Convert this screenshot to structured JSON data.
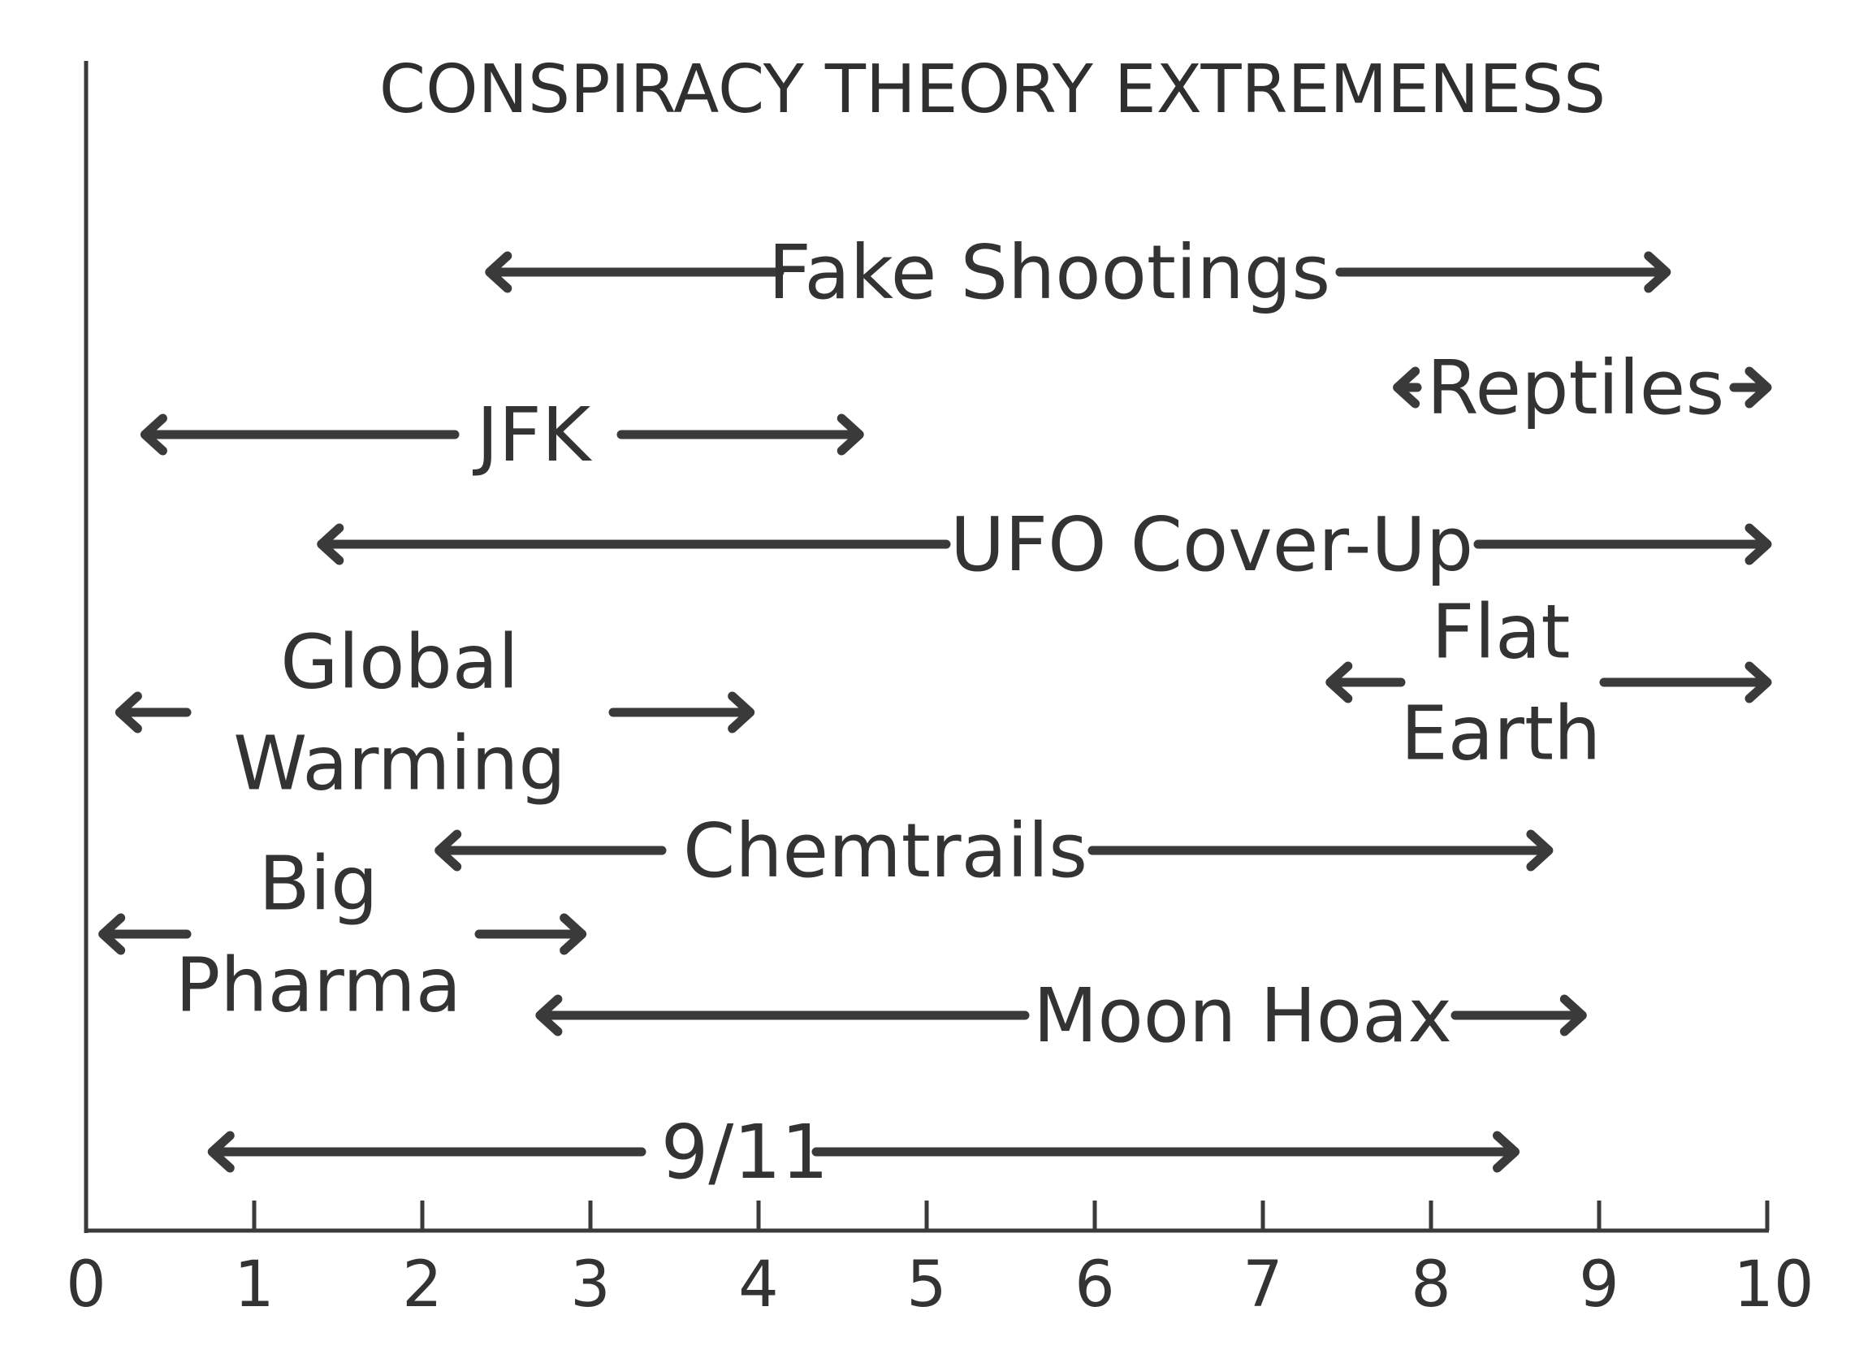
{
  "chart_data": {
    "type": "range",
    "title": "CONSPIRACY THEORY EXTREMENESS",
    "xlim": [
      0,
      10
    ],
    "x_ticks": [
      "0",
      "1",
      "2",
      "3",
      "4",
      "5",
      "6",
      "7",
      "8",
      "9",
      "10"
    ],
    "ranges": [
      {
        "label": [
          "Fake Shootings"
        ],
        "start": 2.4,
        "end": 9.4
      },
      {
        "label": [
          "Reptiles"
        ],
        "start": 7.8,
        "end": 10.0
      },
      {
        "label": [
          "JFK"
        ],
        "start": 0.35,
        "end": 4.6
      },
      {
        "label": [
          "UFO Cover-Up"
        ],
        "start": 1.4,
        "end": 10.0
      },
      {
        "label": [
          "Global",
          "Warming"
        ],
        "start": 0.2,
        "end": 3.95
      },
      {
        "label": [
          "Flat",
          "Earth"
        ],
        "start": 7.4,
        "end": 10.0
      },
      {
        "label": [
          "Chemtrails"
        ],
        "start": 2.1,
        "end": 8.7
      },
      {
        "label": [
          "Big",
          "Pharma"
        ],
        "start": 0.1,
        "end": 2.95
      },
      {
        "label": [
          "Moon Hoax"
        ],
        "start": 2.7,
        "end": 8.9
      },
      {
        "label": [
          "9/11"
        ],
        "start": 0.75,
        "end": 8.5
      }
    ]
  }
}
